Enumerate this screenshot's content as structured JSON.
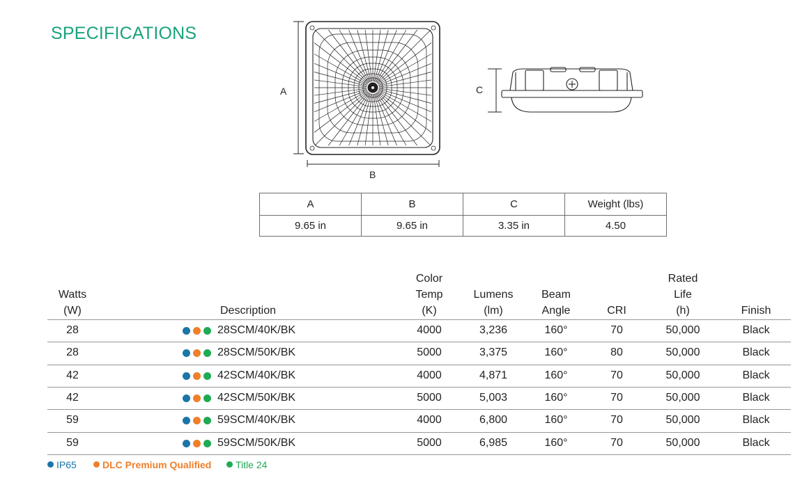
{
  "title": "SPECIFICATIONS",
  "drawing_labels": {
    "a": "A",
    "b": "B",
    "c": "C"
  },
  "dimensions_table": {
    "headers": [
      "A",
      "B",
      "C",
      "Weight (lbs)"
    ],
    "values": [
      "9.65 in",
      "9.65 in",
      "3.35 in",
      "4.50"
    ]
  },
  "spec_table": {
    "headers": {
      "watts": "Watts\n(W)",
      "description": "Description",
      "color_temp": "Color\nTemp\n(K)",
      "lumens": "Lumens\n(lm)",
      "beam_angle": "Beam\nAngle",
      "cri": "CRI",
      "rated_life": "Rated\nLife\n(h)",
      "finish": "Finish"
    },
    "rows": [
      {
        "watts": "28",
        "description": "28SCM/40K/BK",
        "color_temp": "4000",
        "lumens": "3,236",
        "beam_angle": "160°",
        "cri": "70",
        "rated_life": "50,000",
        "finish": "Black"
      },
      {
        "watts": "28",
        "description": "28SCM/50K/BK",
        "color_temp": "5000",
        "lumens": "3,375",
        "beam_angle": "160°",
        "cri": "80",
        "rated_life": "50,000",
        "finish": "Black"
      },
      {
        "watts": "42",
        "description": "42SCM/40K/BK",
        "color_temp": "4000",
        "lumens": "4,871",
        "beam_angle": "160°",
        "cri": "70",
        "rated_life": "50,000",
        "finish": "Black"
      },
      {
        "watts": "42",
        "description": "42SCM/50K/BK",
        "color_temp": "5000",
        "lumens": "5,003",
        "beam_angle": "160°",
        "cri": "70",
        "rated_life": "50,000",
        "finish": "Black"
      },
      {
        "watts": "59",
        "description": "59SCM/40K/BK",
        "color_temp": "4000",
        "lumens": "6,800",
        "beam_angle": "160°",
        "cri": "70",
        "rated_life": "50,000",
        "finish": "Black"
      },
      {
        "watts": "59",
        "description": "59SCM/50K/BK",
        "color_temp": "5000",
        "lumens": "6,985",
        "beam_angle": "160°",
        "cri": "70",
        "rated_life": "50,000",
        "finish": "Black"
      }
    ]
  },
  "legend": [
    {
      "label": "IP65",
      "color": "#1a75a8"
    },
    {
      "label": "DLC Premium Qualified",
      "color": "#f07f2a"
    },
    {
      "label": "Title 24",
      "color": "#1faa56"
    }
  ],
  "colors": {
    "title": "#1aa27c",
    "ip65": "#1a75a8",
    "dlc": "#f07f2a",
    "title24": "#1faa56"
  }
}
